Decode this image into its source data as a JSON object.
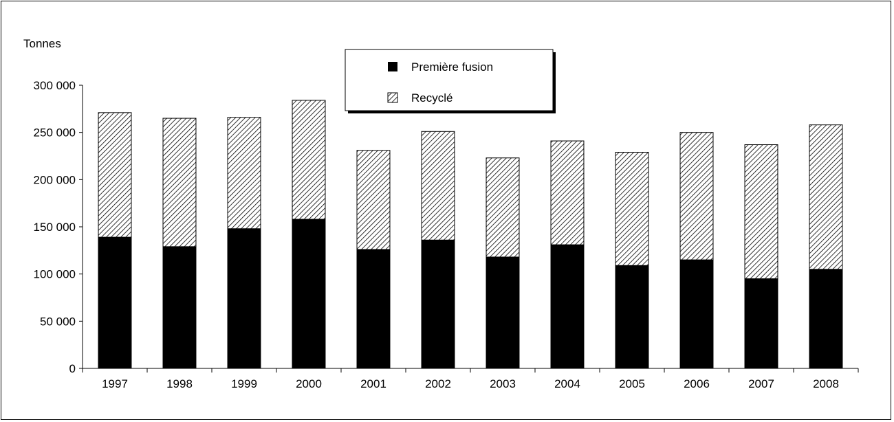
{
  "chart_data": {
    "type": "bar",
    "stacked": true,
    "ylabel": "Tonnes",
    "categories": [
      "1997",
      "1998",
      "1999",
      "2000",
      "2001",
      "2002",
      "2003",
      "2004",
      "2005",
      "2006",
      "2007",
      "2008"
    ],
    "series": [
      {
        "name": "Première fusion",
        "pattern": "solid",
        "color": "#000000",
        "values": [
          139000,
          129000,
          148000,
          158000,
          126000,
          136000,
          118000,
          131000,
          109000,
          115000,
          95000,
          105000
        ]
      },
      {
        "name": "Recyclé",
        "pattern": "diagonal-hatch",
        "color": "#000000",
        "values": [
          132000,
          136000,
          118000,
          126000,
          105000,
          115000,
          105000,
          110000,
          120000,
          135000,
          142000,
          153000
        ]
      }
    ],
    "ylim": [
      0,
      300000
    ],
    "yticks": [
      "0",
      "50 000",
      "100 000",
      "150 000",
      "200 000",
      "250 000",
      "300 000"
    ],
    "ytick_values": [
      0,
      50000,
      100000,
      150000,
      200000,
      250000,
      300000
    ],
    "grid": false,
    "legend_position": "top-center"
  }
}
